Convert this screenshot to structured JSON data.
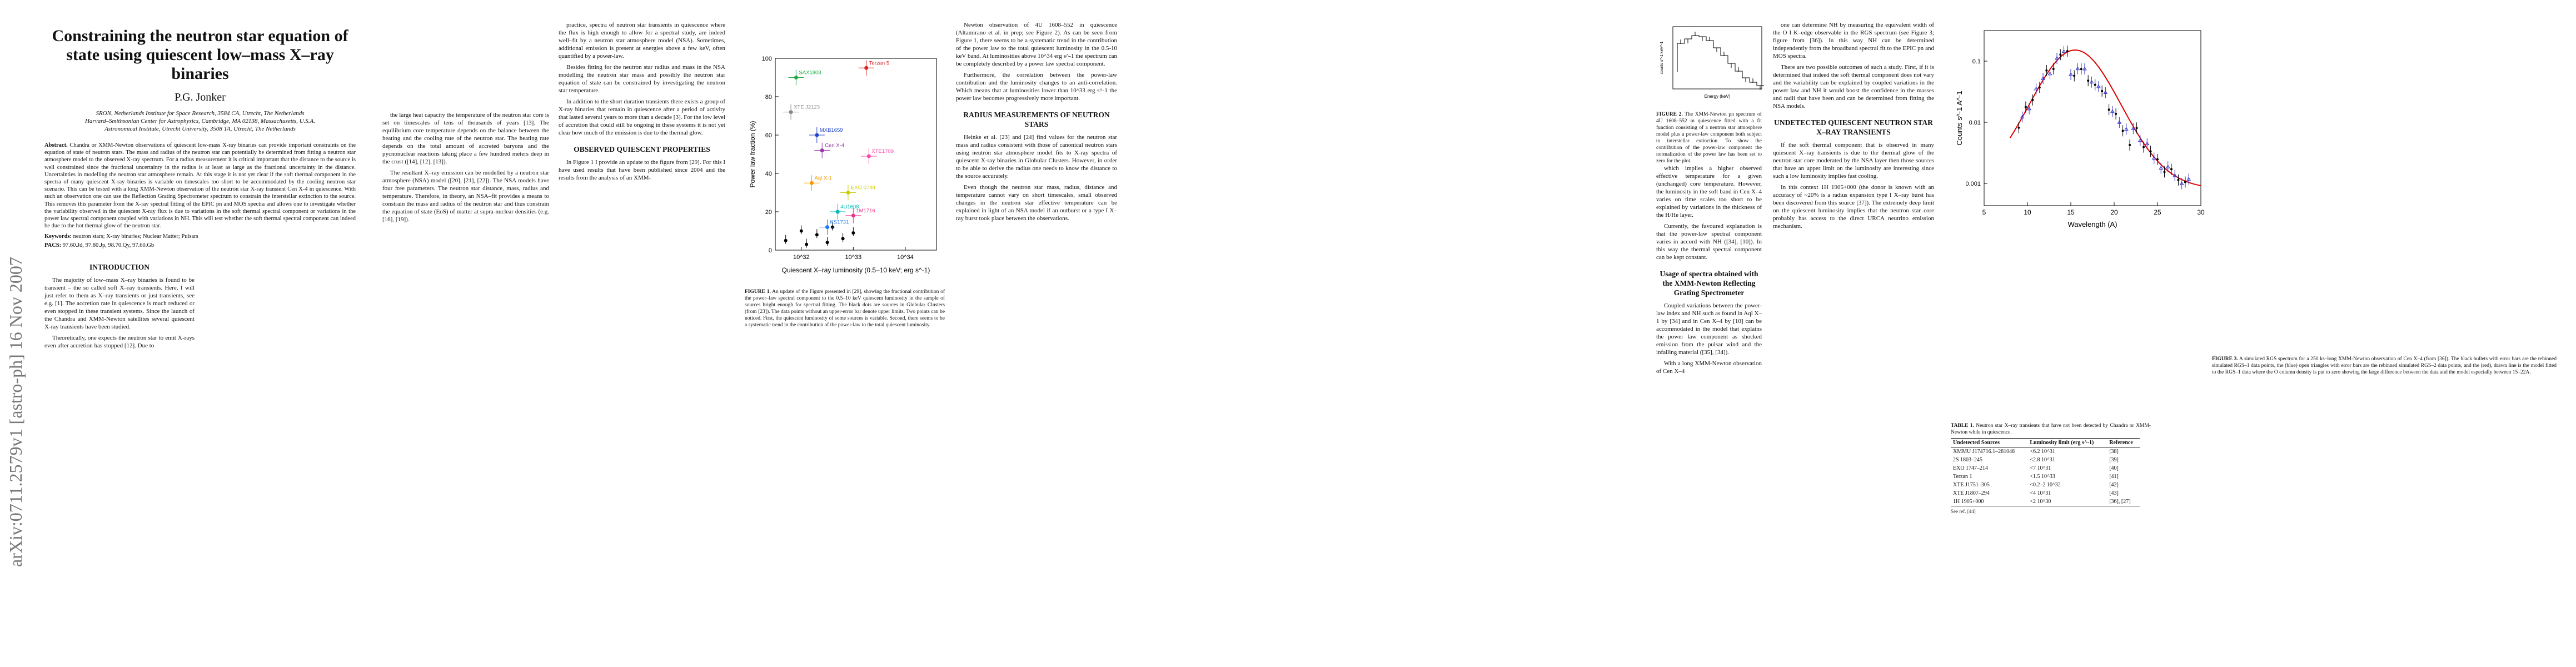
{
  "stamp": "arXiv:0711.2579v1  [astro-ph]  16 Nov 2007",
  "page1": {
    "title": "Constraining the neutron star equation of state using quiescent low–mass X–ray binaries",
    "author": "P.G. Jonker",
    "affil1": "SRON, Netherlands Institute for Space Research, 3584 CA, Utrecht, The Netherlands",
    "affil2": "Harvard–Smithsonian Center for Astrophysics, Cambridge, MA 02138, Massachusetts, U.S.A.",
    "affil3": "Astronomical Institute, Utrecht University, 3508 TA, Utrecht, The Netherlands",
    "abstract_label": "Abstract.",
    "abstract": "Chandra or XMM-Newton observations of quiescent low-mass X-ray binaries can provide important constraints on the equation of state of neutron stars. The mass and radius of the neutron star can potentially be determined from fitting a neutron star atmosphere model to the observed X-ray spectrum. For a radius measurement it is critical important that the distance to the source is well constrained since the fractional uncertainty in the radius is at least as large as the fractional uncertainty in the distance. Uncertainties in modelling the neutron star atmosphere remain. At this stage it is not yet clear if the soft thermal component in the spectra of many quiescent X-ray binaries is variable on timescales too short to be accommodated by the cooling neutron star scenario. This can be tested with a long XMM-Newton observation of the neutron star X-ray transient Cen X-4 in quiescence. With such an observation one can use the Reflection Grating Spectrometer spectrum to constrain the interstellar extinction to the source. This removes this parameter from the X-ray spectral fitting of the EPIC pn and MOS spectra and allows one to investigate whether the variability observed in the quiescent X-ray flux is due to variations in the soft thermal spectral component or variations in the power law spectral component coupled with variations in NH. This will test whether the soft thermal spectral component can indeed be due to the hot thermal glow of the neutron star.",
    "keywords_label": "Keywords:",
    "keywords": "neutron stars; X-ray binaries; Nuclear Matter; Pulsars",
    "pacs_label": "PACS:",
    "pacs": "97.60.Jd, 97.80.Jp, 98.70.Qy, 97.60.Gb",
    "intro_heading": "INTRODUCTION",
    "intro_p1": "The majority of low–mass X–ray binaries is found to be transient – the so called soft X–ray transients. Here, I will just refer to them as X–ray transients or just transients, see e.g. [1]. The accretion rate in quiescence is much reduced or even stopped in these transient systems. Since the launch of the Chandra and XMM-Newton satellites several quiescent X-ray transients have been studied.",
    "intro_p2": "Theoretically, one expects the neutron star to emit X-rays even after accretion has stopped [12]. Due to"
  },
  "page2": {
    "col1_p1": "the large heat capacity the temperature of the neutron star core is set on timescales of tens of thousands of years [13]. The equilibrium core temperature depends on the balance between the heating and the cooling rate of the neutron star. The heating rate depends on the total amount of accreted baryons and the pycnonuclear reactions taking place a few hundred meters deep in the crust ([14], [12], [13]).",
    "col1_p2": "The resultant X–ray emission can be modelled by a neutron star atmosphere (NSA) model ([20], [21], [22]). The NSA models have four free parameters. The neutron star distance, mass, radius and temperature. Therefore, in theory, an NSA–fit provides a means to constrain the mass and radius of the neutron star and thus constrain the equation of state (EoS) of matter at supra-nuclear densities (e.g. [16], [19]).",
    "col2_p1": "practice, spectra of neutron star transients in quiescence where the flux is high enough to allow for a spectral study, are indeed well–fit by a neutron star atmosphere model (NSA). Sometimes, additional emission is present at energies above a few keV, often quantified by a power-law.",
    "col2_p2": "Besides fitting for the neutron star radius and mass in the NSA modelling the neutron star mass and possibly the neutron star equation of state can be constrained by investigating the neutron star temperature.",
    "col2_p3": "In addition to the short duration transients there exists a group of X-ray binaries that remain in quiescence after a period of activity that lasted several years to more than a decade [3]. For the low level of accretion that could still be ongoing in these systems it is not yet clear how much of the emission is due to the thermal glow.",
    "col2_heading": "OBSERVED QUIESCENT PROPERTIES",
    "col2_p4": "In Figure 1 I provide an update to the figure from [29]. For this I have used results that have been published since 2004 and the results from the analysis of an XMM-"
  },
  "page3": {
    "col1_p1": "Newton observation of 4U 1608–552 in quiescence (Altamirano et al. in prep; see Figure 2). As can be seen from Figure 1, there seems to be a systematic trend in the contribution of the power law to the total quiescent luminosity in the 0.5-10 keV band. At luminosities above 10^34 erg s^-1 the spectrum can be completely described by a power law spectral component.",
    "col1_p2": "Furthermore, the correlation between the power-law contribution and the luminosity changes to an anti-correlation. Which means that at luminosities lower than 10^33 erg s^-1 the power law becomes progressively more important.",
    "col1_heading": "RADIUS MEASUREMENTS OF NEUTRON STARS",
    "col1_p3": "Heinke et al. [23] and [24] find values for the neutron star mass and radius consistent with those of canonical neutron stars using neutron star atmosphere model fits to X-ray spectra of quiescent X-ray binaries in Globular Clusters. However, in order to be able to derive the radius one needs to know the distance to the source accurately.",
    "col2_p1": "Even though the neutron star mass, radius, distance and temperature cannot vary on short timescales, small observed changes in the neutron star effective temperature can be explained in light of an NSA model if an outburst or a type I X–ray burst took place between the observations.",
    "fig1_caption_label": "FIGURE 1.",
    "fig1_caption": "An update of the Figure presented in [29], showing the fractional contribution of the power–law spectral component to the 0.5–10 keV quiescent luminosity in the sample of sources bright enough for spectral fitting. The black dots are sources in Globular Clusters (from [23]). The data points without an upper-error bar denote upper limits. Two points can be noticed. First, the quiescent luminosity of some sources is variable. Second, there seems to be a systematic trend in the contribution of the power-law to the total quiescent luminosity."
  },
  "page4": {
    "fig2_caption_label": "FIGURE 2.",
    "fig2_caption": "The XMM-Newton pn spectrum of 4U 1608–552 in quiescence fitted with a fit function consisting of a neutron star atmosphere model plus a power-law component both subject to interstellar extinction. To show the contribution of the power-law component the normalization of the power law has been set to zero for the plot.",
    "col1_p1": "which implies a higher observed effective temperature for a given (unchanged) core temperature. However, the luminosity in the soft band in Cen X–4 varies on time scales too short to be explained by variations in the thickness of the H/He layer.",
    "col1_p2": "Currently, the favoured explanation is that the power-law spectral component varies in accord with NH ([34], [10]). In this way the thermal spectral component can be kept constant.",
    "col1_heading": "Usage of spectra obtained with the XMM-Newton Reflecting Grating Spectrometer",
    "col1_p3": "Coupled variations between the power-law index and NH such as found in Aql X–1 by [34] and in Cen X–4 by [10] can be accommodated in the model that explains the power law component as shocked emission from the pulsar wind and the infalling material ([35], [34]).",
    "col1_p4": "With a long XMM-Newton observation of Cen X–4",
    "col2_p1": "one can determine NH by measuring the equivalent width of the O I K–edge observable in the RGS spectrum (see Figure 3; figure from [36]). In this way NH can be determined independently from the broadband spectral fit to the EPIC pn and MOS spectra.",
    "col2_p2": "There are two possible outcomes of such a study. First, if it is determined that indeed the soft thermal component does not vary and the variability can be explained by coupled variations in the power law and NH it would boost the confidence in the masses and radii that have been and can be determined from fitting the NSA models.",
    "col2_heading": "UNDETECTED QUIESCENT NEUTRON STAR X–RAY TRANSIENTS",
    "col2_p3": "If the soft thermal component that is observed in many quiescent X–ray transients is due to the thermal glow of the neutron star core moderated by the NSA layer then those sources that have an upper limit on the luminosity are interesting since such a low luminosity implies fast cooling.",
    "col2_p4": "In this context 1H 1905+000 (the donor is known with an accuracy of ~20% is a radius expansion type I X–ray burst has been discovered from this source [37]). The extremely deep limit on the quiescent luminosity implies that the neutron star core probably has access to the direct URCA neutrino emission mechanism."
  },
  "page5": {
    "fig3_caption_label": "FIGURE 3.",
    "fig3_caption": "A simulated RGS spectrum for a 250 ks–long XMM-Newton observation of Cen X–4 (from [36]). The black bullets with error bars are the rebinned simulated RGS–1 data points, the (blue) open triangles with error bars are the rebinned simulated RGS–2 data points, and the (red), drawn line is the model fitted to the RGS–1 data where the O column density is put to zero showing the large difference between the data and the model especially between 15–22A.",
    "table_label": "TABLE 1.",
    "table_caption": "Neutron star X–ray transients that have not been detected by Chandra or XMM-Newton while in quiescence.",
    "table_headers": [
      "Undetected Sources",
      "Luminosity limit (erg s^-1)",
      "Reference"
    ],
    "table_rows": [
      [
        "XMMU J174716.1–281048",
        "<6.2  10^31",
        "[38]"
      ],
      [
        "2S 1803–245",
        "<2.8  10^31",
        "[39]"
      ],
      [
        "EXO 1747–214",
        "<7  10^31",
        "[40]"
      ],
      [
        "Terzan 1",
        "<1.5  10^33",
        "[41]"
      ],
      [
        "XTE J1751–305",
        "<0.2–2 10^32",
        "[42]"
      ],
      [
        "XTE J1807–294",
        "<4  10^31",
        "[43]"
      ],
      [
        "1H 1905+000",
        "<2  10^30",
        "[36], [27]"
      ]
    ],
    "table_note": "See ref. [44]"
  },
  "chart_data": [
    {
      "id": "fig1",
      "type": "scatter",
      "xlabel": "Quiescent X–ray luminosity (0.5–10 keV; erg s^-1)",
      "ylabel": "Power law fraction (%)",
      "x_scale": "log",
      "x_ticks": [
        "10^32",
        "10^33",
        "10^34"
      ],
      "xlim": [
        31.5,
        34.6
      ],
      "ylim": [
        0,
        100
      ],
      "y_ticks": [
        0,
        20,
        40,
        60,
        80,
        100
      ],
      "sources": [
        {
          "name": "SAX1808",
          "color": "#22aa44",
          "x": 31.9,
          "y": 90
        },
        {
          "name": "Terzan 5",
          "color": "#dd2222",
          "x": 33.25,
          "y": 95
        },
        {
          "name": "MXB1659",
          "color": "#2244cc",
          "x": 32.3,
          "y": 60
        },
        {
          "name": "Cen X-4",
          "color": "#9933aa",
          "x": 32.4,
          "y": 52
        },
        {
          "name": "XTE1709",
          "color": "#ff44aa",
          "x": 33.3,
          "y": 49
        },
        {
          "name": "XTE J2123",
          "color": "#888888",
          "x": 31.8,
          "y": 72
        },
        {
          "name": "Aql X-1",
          "color": "#ff9900",
          "x": 32.2,
          "y": 35
        },
        {
          "name": "KS1731",
          "color": "#2277ff",
          "x": 32.5,
          "y": 12
        },
        {
          "name": "4U1608",
          "color": "#00bbbb",
          "x": 32.7,
          "y": 20
        },
        {
          "name": "EXO 0748",
          "color": "#cccc00",
          "x": 32.9,
          "y": 30
        },
        {
          "name": "1M1716",
          "color": "#ee3388",
          "x": 33.0,
          "y": 18
        }
      ],
      "gc_points": [
        {
          "x": 31.7,
          "y": 5
        },
        {
          "x": 32.0,
          "y": 10
        },
        {
          "x": 32.1,
          "y": 3
        },
        {
          "x": 32.3,
          "y": 8
        },
        {
          "x": 32.5,
          "y": 4
        },
        {
          "x": 32.6,
          "y": 12
        },
        {
          "x": 32.8,
          "y": 6
        },
        {
          "x": 33.0,
          "y": 9
        }
      ]
    },
    {
      "id": "fig2",
      "type": "line",
      "xlabel": "Energy (keV)",
      "ylabel": "counts s^-1 keV^-1",
      "note": "XMM-Newton pn spectrum of 4U 1608–552"
    },
    {
      "id": "fig3",
      "type": "line",
      "xlabel": "Wavelength (A)",
      "ylabel": "Counts s^-1 A^-1",
      "xlim": [
        5,
        30
      ],
      "x_ticks": [
        5,
        10,
        15,
        20,
        25,
        30
      ],
      "y_ticks": [
        "0.001",
        "0.01",
        "0.1"
      ],
      "series": [
        {
          "name": "RGS-1 model (red)",
          "color": "#dd0000"
        },
        {
          "name": "RGS-1 data",
          "color": "#000000"
        },
        {
          "name": "RGS-2 data",
          "color": "#3333cc"
        }
      ]
    }
  ]
}
